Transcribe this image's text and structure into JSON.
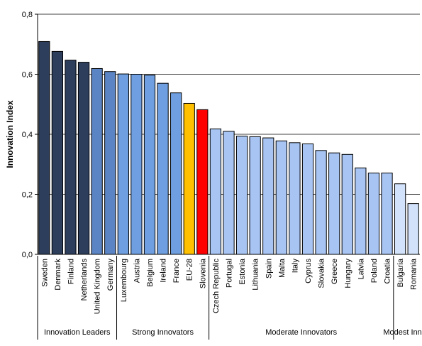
{
  "chart_data": {
    "type": "bar",
    "title": "",
    "xlabel": "",
    "ylabel": "Innovation Index",
    "ylim": [
      0,
      0.8
    ],
    "yticks": [
      "0,0",
      "0,2",
      "0,4",
      "0,6",
      "0,8"
    ],
    "grid": true,
    "categories": [
      "Sweden",
      "Denmark",
      "Finland",
      "Netherlands",
      "United Kingdom",
      "Germany",
      "Luxembourg",
      "Austria",
      "Belgium",
      "Ireland",
      "France",
      "EU-28",
      "Slovenia",
      "Czech Republic",
      "Portugal",
      "Estonia",
      "Lithuania",
      "Spain",
      "Malta",
      "Italy",
      "Cyprus",
      "Slovakia",
      "Greece",
      "Hungary",
      "Latvia",
      "Poland",
      "Croatia",
      "Bulgaria",
      "Romania"
    ],
    "values": [
      0.709,
      0.676,
      0.647,
      0.64,
      0.619,
      0.609,
      0.601,
      0.6,
      0.597,
      0.57,
      0.538,
      0.503,
      0.482,
      0.418,
      0.41,
      0.394,
      0.392,
      0.388,
      0.378,
      0.372,
      0.368,
      0.346,
      0.338,
      0.333,
      0.288,
      0.271,
      0.271,
      0.235,
      0.169
    ],
    "bar_colors": [
      "#2d3e5c",
      "#2d3e5c",
      "#2d3e5c",
      "#2d3e5c",
      "#5b84c4",
      "#5b84c4",
      "#6f9fe0",
      "#6f9fe0",
      "#6f9fe0",
      "#6f9fe0",
      "#6f9fe0",
      "#ffc000",
      "#ff0000",
      "#a7c4f3",
      "#a7c4f3",
      "#a7c4f3",
      "#a7c4f3",
      "#a7c4f3",
      "#a7c4f3",
      "#a7c4f3",
      "#a7c4f3",
      "#a7c4f3",
      "#a7c4f3",
      "#a7c4f3",
      "#a7c4f3",
      "#a7c4f3",
      "#a7c4f3",
      "#d2e2fa",
      "#d2e2fa"
    ],
    "groups": [
      {
        "label": "Innovation Leaders",
        "start": 0,
        "end": 5
      },
      {
        "label": "Strong Innovators",
        "start": 6,
        "end": 12
      },
      {
        "label": "Moderate Innovators",
        "start": 13,
        "end": 26
      },
      {
        "label": "Modest Innov",
        "start": 27,
        "end": 28
      }
    ]
  }
}
